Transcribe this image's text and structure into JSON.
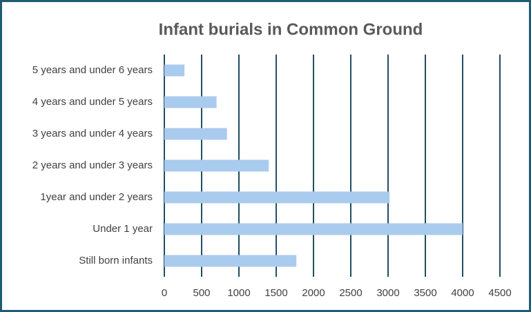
{
  "chart_data": {
    "type": "bar",
    "orientation": "horizontal",
    "title": "Infant burials in Common Ground",
    "categories": [
      "Still born infants",
      "Under 1 year",
      "1year and under 2 years",
      "2 years and under 3 years",
      "3 years and under 4 years",
      "4 years and under 5 years",
      "5 years and under 6 years"
    ],
    "values": [
      1770,
      4000,
      3020,
      1400,
      840,
      700,
      270
    ],
    "color": "#a9cbee",
    "xlim": [
      0,
      4500
    ],
    "xticks": [
      0,
      500,
      1000,
      1500,
      2000,
      2500,
      3000,
      3500,
      4000,
      4500
    ],
    "grid": true,
    "grid_color": "#1f4e61"
  }
}
